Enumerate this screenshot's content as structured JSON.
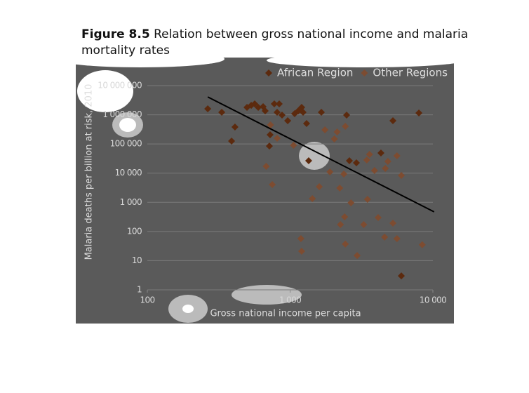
{
  "chart_data": {
    "type": "scatter",
    "figure_label": "Figure 8.5",
    "title": [
      "Relation between gross national income and malaria",
      "mortality rates"
    ],
    "x_label": "Gross national income per capita",
    "y_label": "Malaria deaths per billion at risk, 2010",
    "xlog": true,
    "ylog": true,
    "grid": true,
    "legend": "top-right",
    "xlim": [
      100,
      10000
    ],
    "xticks": [
      100,
      {
        "value": 1000,
        "label": "1 000"
      },
      {
        "value": 10000,
        "label": "10 000"
      }
    ],
    "ylim": [
      1,
      10000000
    ],
    "yticks": [
      1,
      10,
      100,
      {
        "value": 1000,
        "label": "1 000"
      },
      {
        "value": 10000,
        "label": "10 000"
      },
      {
        "value": 100000,
        "label": "100 000"
      },
      {
        "value": 1000000,
        "label": "1 000 000"
      },
      {
        "value": 10000000,
        "label": "10 000 000"
      }
    ],
    "series": [
      {
        "name": "African Region",
        "color": "#5c2a0e",
        "x": [
          265,
          332,
          411,
          389,
          499,
          534,
          565,
          598,
          647,
          669,
          724,
          716,
          775,
          839,
          811,
          878,
          962,
          1076,
          1140,
          1205,
          1233,
          1304,
          1655,
          2487,
          2602,
          2913,
          4327,
          5248,
          7980,
          6012,
          1349
        ],
        "values": [
          1610000,
          1220000,
          381000,
          126000,
          1800000,
          2100000,
          2370000,
          1800000,
          1900000,
          1360000,
          207000,
          85000,
          2370000,
          2370000,
          1220000,
          975000,
          627000,
          1090000,
          1360000,
          1800000,
          1220000,
          503000,
          1220000,
          975000,
          26700,
          22600,
          49100,
          627000,
          1150000,
          3,
          26700
        ]
      },
      {
        "name": "Other Regions",
        "color": "#7d4c31",
        "x": [
          680,
          750,
          729,
          811,
          1057,
          1190,
          1205,
          1431,
          1600,
          1754,
          1900,
          2041,
          2135,
          2227,
          2378,
          2437,
          2252,
          2409,
          2669,
          2437,
          2947,
          3280,
          3483,
          3442,
          3900,
          4137,
          4590,
          4643,
          4840,
          5248,
          5600,
          5600,
          6012,
          8420,
          3600
        ],
        "values": [
          17100,
          4060,
          450000,
          157000,
          90300,
          57,
          21,
          1340,
          3440,
          305000,
          11000,
          149000,
          259000,
          3080,
          9310,
          403000,
          173,
          318,
          962,
          37,
          15,
          173,
          1270,
          28200,
          12300,
          300,
          64,
          14500,
          25200,
          193,
          39400,
          57,
          8340,
          35,
          44000
        ]
      }
    ],
    "trendline": {
      "color": "#000000",
      "x": [
        265,
        10200
      ],
      "values": [
        4100000,
        470
      ]
    }
  }
}
